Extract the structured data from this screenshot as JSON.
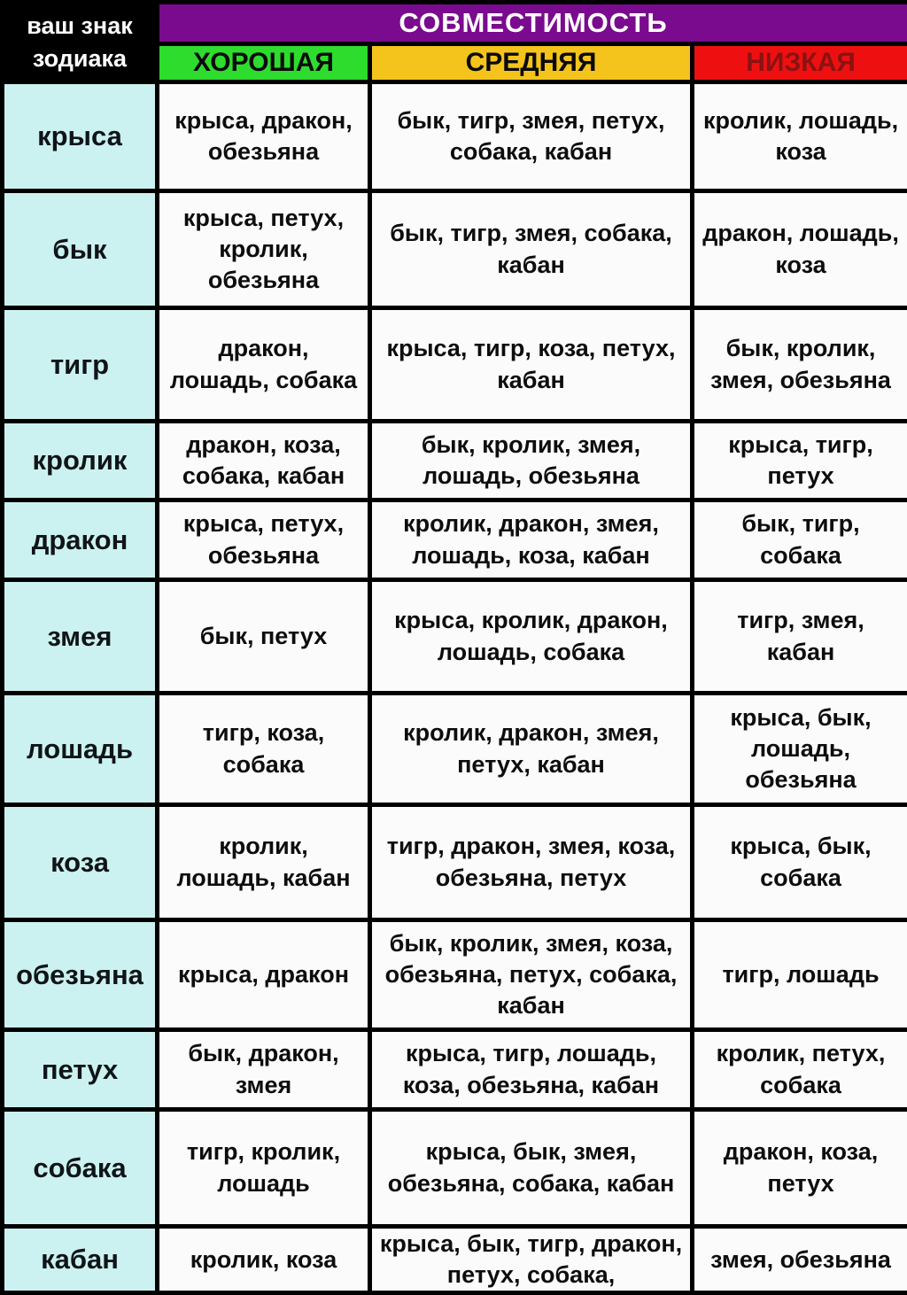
{
  "header": {
    "corner_line1": "ваш знак",
    "corner_line2": "зодиака",
    "compat_title": "СОВМЕСТИМОСТЬ",
    "columns": [
      {
        "key": "good",
        "label": "ХОРОШАЯ"
      },
      {
        "key": "medium",
        "label": "СРЕДНЯЯ"
      },
      {
        "key": "low",
        "label": "НИЗКАЯ"
      }
    ]
  },
  "colors": {
    "compat_header_bg": "#7a0b8e",
    "good_bg": "#2edc2e",
    "medium_bg": "#f5c41c",
    "low_bg": "#ee1010",
    "low_text": "#8a1212",
    "sign_column_bg": "#cbf2f0",
    "corner_bg": "#000000",
    "border": "#000000"
  },
  "rows": [
    {
      "sign": "крыса",
      "good": "крыса, дракон, обезьяна",
      "medium": "бык, тигр, змея, петух, собака, кабан",
      "low": "кролик, лошадь, коза"
    },
    {
      "sign": "бык",
      "good": "крыса, петух, кролик, обезьяна",
      "medium": "бык, тигр, змея, собака, кабан",
      "low": "дракон, лошадь, коза"
    },
    {
      "sign": "тигр",
      "good": "дракон, лошадь, собака",
      "medium": "крыса, тигр, коза, петух, кабан",
      "low": "бык, кролик, змея, обезьяна"
    },
    {
      "sign": "кролик",
      "good": "дракон, коза, собака, кабан",
      "medium": "бык, кролик, змея, лошадь, обезьяна",
      "low": "крыса, тигр, петух"
    },
    {
      "sign": "дракон",
      "good": "крыса, петух, обезьяна",
      "medium": "кролик, дракон, змея, лошадь, коза, кабан",
      "low": "бык, тигр, собака"
    },
    {
      "sign": "змея",
      "good": "бык, петух",
      "medium": "крыса, кролик, дракон, лошадь, собака",
      "low": "тигр, змея, кабан"
    },
    {
      "sign": "лошадь",
      "good": "тигр, коза, собака",
      "medium": "кролик, дракон, змея, петух, кабан",
      "low": "крыса, бык, лошадь, обезьяна"
    },
    {
      "sign": "коза",
      "good": "кролик, лошадь, кабан",
      "medium": "тигр, дракон, змея, коза, обезьяна, петух",
      "low": "крыса, бык, собака"
    },
    {
      "sign": "обезьяна",
      "good": "крыса, дракон",
      "medium": "бык, кролик, змея, коза, обезьяна, петух, собака, кабан",
      "low": "тигр, лошадь"
    },
    {
      "sign": "петух",
      "good": "бык, дракон, змея",
      "medium": "крыса, тигр, лошадь, коза, обезьяна, кабан",
      "low": "кролик, петух, собака"
    },
    {
      "sign": "собака",
      "good": "тигр, кролик, лошадь",
      "medium": "крыса, бык, змея, обезьяна, собака, кабан",
      "low": "дракон, коза, петух"
    },
    {
      "sign": "кабан",
      "good": "кролик, коза",
      "medium": "крыса, бык, тигр, дракон, петух, собака,",
      "low": "змея, обезьяна"
    }
  ]
}
